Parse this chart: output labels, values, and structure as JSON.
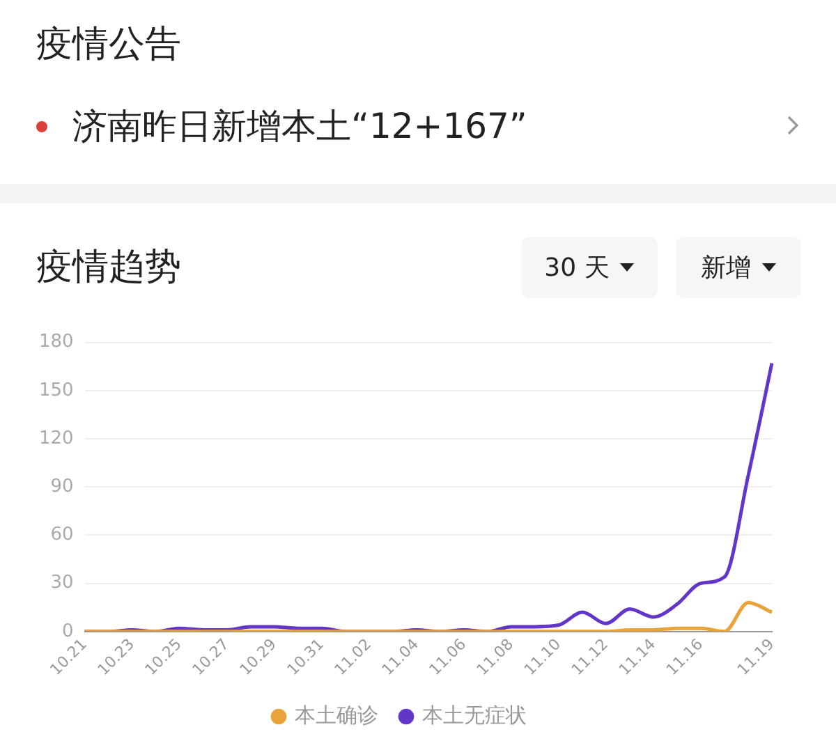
{
  "chart_data": {
    "type": "line",
    "title": "疫情趋势",
    "annotations": [
      "疫情公告",
      "济南昨日新增本土“12+167”",
      "30 天",
      "新增"
    ],
    "categories": [
      "10.21",
      null,
      "10.23",
      null,
      "10.25",
      null,
      "10.27",
      null,
      "10.29",
      null,
      "10.31",
      null,
      "11.02",
      null,
      "11.04",
      null,
      "11.06",
      null,
      "11.08",
      null,
      "11.10",
      null,
      "11.12",
      null,
      "11.14",
      null,
      "11.16",
      null,
      null,
      "11.19"
    ],
    "series": [
      {
        "name": "本土确诊",
        "color": "#e8a43a",
        "values": [
          0,
          0,
          0,
          0,
          0,
          0,
          0,
          0,
          0,
          0,
          0,
          0,
          0,
          0,
          0,
          0,
          0,
          0,
          0,
          0,
          0,
          0,
          0,
          1,
          1,
          2,
          2,
          0,
          18,
          12
        ]
      },
      {
        "name": "本土无症状",
        "color": "#6236c8",
        "values": [
          0,
          0,
          1,
          0,
          2,
          1,
          1,
          3,
          3,
          2,
          2,
          0,
          0,
          0,
          1,
          0,
          1,
          0,
          3,
          3,
          4,
          12,
          5,
          14,
          9,
          17,
          30,
          34,
          97,
          167
        ]
      }
    ],
    "ylim": [
      0,
      180
    ],
    "yticks": [
      0,
      30,
      60,
      90,
      120,
      150,
      180
    ],
    "grid": "y",
    "legend": "bottom",
    "marker": "none",
    "line_style": "solid"
  }
}
